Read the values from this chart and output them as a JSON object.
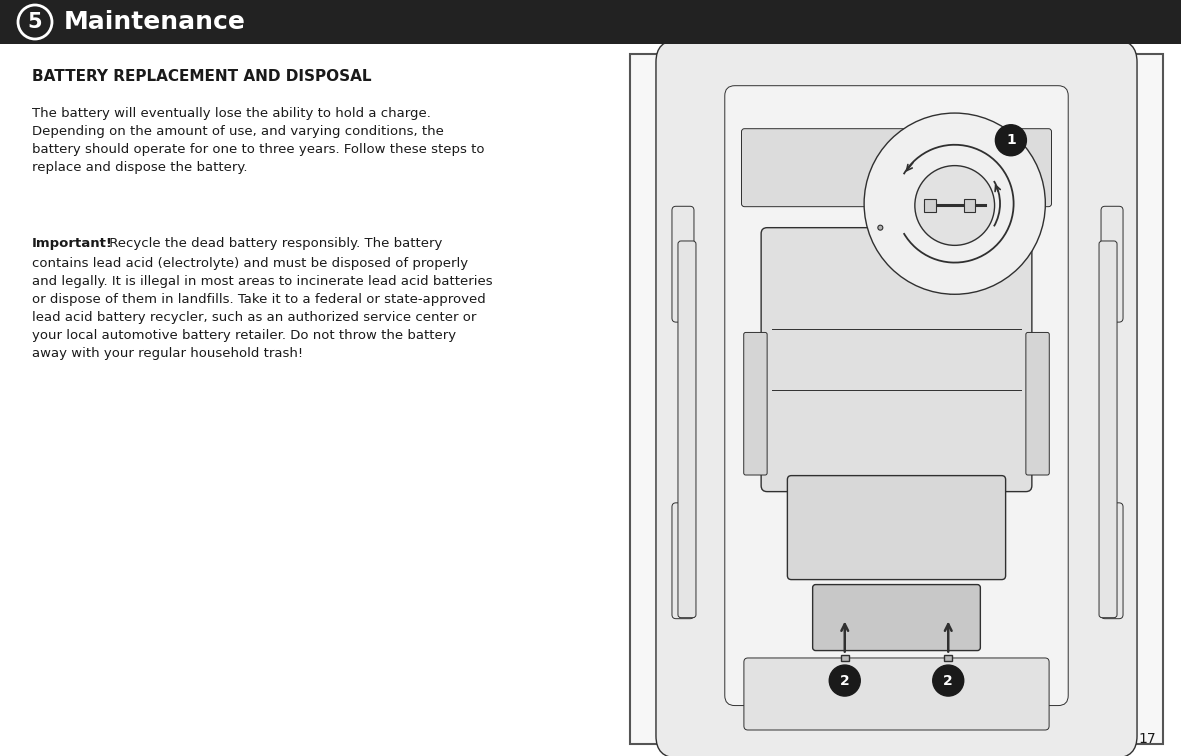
{
  "bg_color": "#ffffff",
  "header_bg": "#222222",
  "header_text": "Maintenance",
  "header_number": "5",
  "header_text_color": "#ffffff",
  "title": "BATTERY REPLACEMENT AND DISPOSAL",
  "paragraph1": "The battery will eventually lose the ability to hold a charge.\nDepending on the amount of use, and varying conditions, the\nbattery should operate for one to three years. Follow these steps to\nreplace and dispose the battery.",
  "paragraph2_bold": "Important!",
  "paragraph2_rest": " Recycle the dead battery responsibly. The battery contains lead acid (electrolyte) and must be disposed of properly and legally. It is illegal in most areas to incinerate lead acid batteries or dispose of them in landfills. Take it to a federal or state-approved lead acid battery recycler, such as an authorized service center or your local automotive battery retailer. Do not throw the battery away with your regular household trash!",
  "page_number": "17",
  "text_color": "#1a1a1a",
  "image_border_color": "#666666",
  "circle_fill": "#1a1a1a",
  "circle_text_color": "#ffffff"
}
